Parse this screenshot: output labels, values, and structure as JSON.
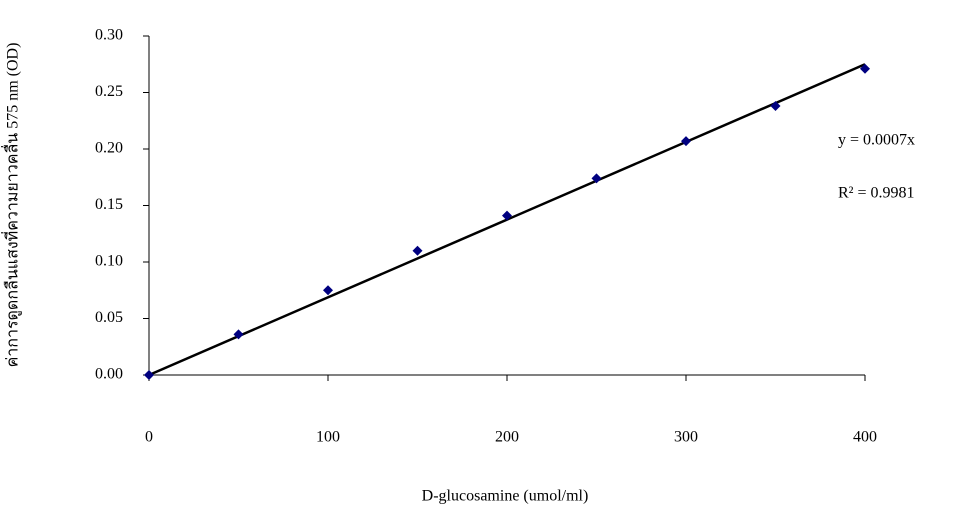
{
  "chart_data": {
    "type": "scatter",
    "x_label": "D-glucosamine (umol/ml)",
    "y_label": "ค่าการดูดกลืนแสงที่ความยาวคลื่น 575 nm  (OD)",
    "x": [
      0,
      50,
      100,
      150,
      200,
      250,
      300,
      350,
      400
    ],
    "series": [
      {
        "color": "#000080",
        "values": [
          0,
          0.036,
          0.075,
          0.11,
          0.141,
          0.174,
          0.207,
          0.238,
          0.271
        ]
      }
    ],
    "trendline": {
      "color": "#000000",
      "x": [
        0,
        400
      ],
      "values": [
        0,
        0.275
      ]
    },
    "annotations": [
      "y = 0.0007x",
      "R² = 0.9981"
    ],
    "xlim": [
      0,
      400
    ],
    "xticks": [
      0,
      100,
      200,
      300,
      400
    ],
    "ylim": [
      0,
      0.3
    ],
    "yticks": [
      {
        "value": 0,
        "label": "0.00"
      },
      0.05,
      {
        "value": 0.1,
        "label": "0.10"
      },
      0.15,
      {
        "value": 0.2,
        "label": "0.20"
      },
      0.25,
      {
        "value": 0.3,
        "label": "0.30"
      }
    ],
    "grid": false
  }
}
